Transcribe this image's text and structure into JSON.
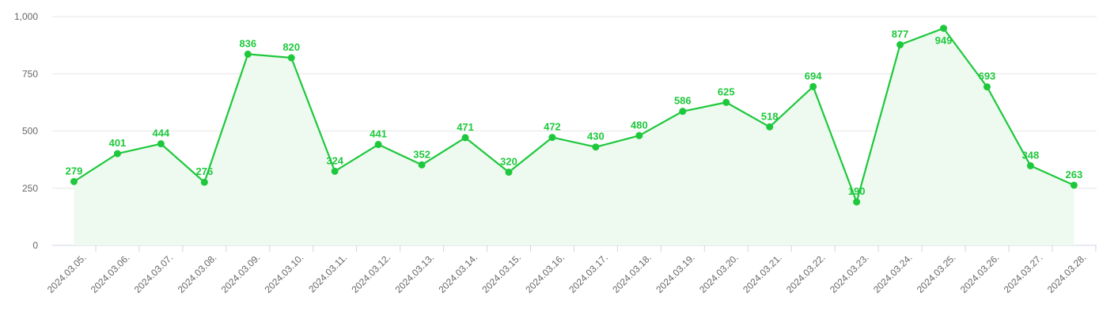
{
  "chart_data": {
    "type": "line",
    "title": "",
    "xlabel": "",
    "ylabel": "",
    "ylim": [
      0,
      1000
    ],
    "yticks": [
      0,
      250,
      500,
      750,
      1000
    ],
    "ytick_labels": [
      "0",
      "250",
      "500",
      "750",
      "1,000"
    ],
    "grid": true,
    "area_fill": true,
    "categories": [
      "2024.03.05.",
      "2024.03.06.",
      "2024.03.07.",
      "2024.03.08.",
      "2024.03.09.",
      "2024.03.10.",
      "2024.03.11.",
      "2024.03.12.",
      "2024.03.13.",
      "2024.03.14.",
      "2024.03.15.",
      "2024.03.16.",
      "2024.03.17.",
      "2024.03.18.",
      "2024.03.19.",
      "2024.03.20.",
      "2024.03.21.",
      "2024.03.22.",
      "2024.03.23.",
      "2024.03.24.",
      "2024.03.25.",
      "2024.03.26.",
      "2024.03.27.",
      "2024.03.28."
    ],
    "series": [
      {
        "values": [
          279,
          401,
          444,
          276,
          836,
          820,
          324,
          441,
          352,
          471,
          320,
          472,
          430,
          480,
          586,
          625,
          518,
          694,
          190,
          877,
          949,
          693,
          348,
          263
        ],
        "color": "#1ec83c",
        "fill_color": "#eefaf0"
      }
    ]
  }
}
